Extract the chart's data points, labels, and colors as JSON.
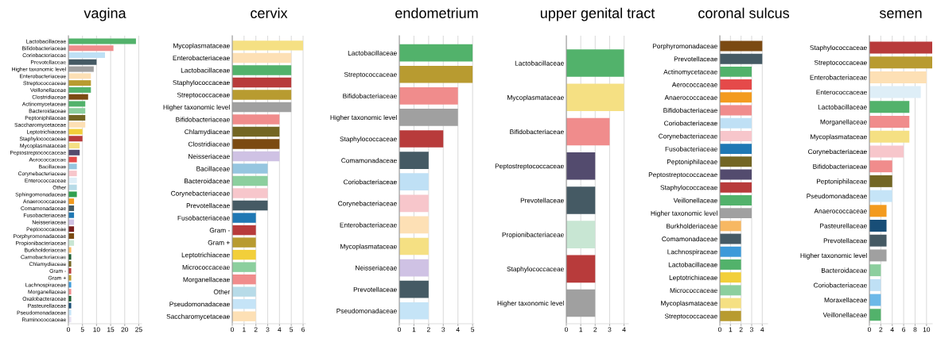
{
  "chart_data": [
    {
      "type": "bar",
      "orientation": "horizontal",
      "title": "vagina",
      "grid": "x",
      "xlim": [
        0,
        26
      ],
      "xticks": [
        0,
        5,
        10,
        15,
        20,
        25
      ],
      "categories": [
        "Lactobacillaceae",
        "Bifidobacteriaceae",
        "Coriobacteriaceae",
        "Prevotellaceae",
        "Higher taxonomic level",
        "Enterobacteriaceae",
        "Streptococcaceae",
        "Veillonellaceae",
        "Clostridiaceae",
        "Actinomycetaceae",
        "Bacteroidaceae",
        "Peptoniphilaceae",
        "Saccharomycetaceae",
        "Leptotrichiaceae",
        "Staphylococcaceae",
        "Mycoplasmataceae",
        "Peptostreptococcaceae",
        "Aerococcaceae",
        "Bacillaceae",
        "Corynebacteriaceae",
        "Enterococcaceae",
        "Other",
        "Sphingomonadaceae",
        "Anaerococcaceae",
        "Comamonadaceae",
        "Fusobacteriaceae",
        "Neisseriaceae",
        "Peptococcaceae",
        "Porphyromonadaceae",
        "Propionibacteriaceae",
        "Burkholderiaceae",
        "Carnobacteriaceae",
        "Chlamydiaceae",
        "Gram -",
        "Gram +",
        "Lachnospiraceae",
        "Morganellaceae",
        "Oxalobacteraceae",
        "Pasteurellaceae",
        "Pseudomonadaceae",
        "Ruminococcaceae"
      ],
      "values": [
        24,
        16,
        13,
        10,
        9,
        8,
        8,
        8,
        7,
        6,
        6,
        6,
        6,
        5,
        5,
        4,
        4,
        3,
        3,
        3,
        3,
        3,
        3,
        2,
        2,
        2,
        2,
        2,
        2,
        2,
        1,
        1,
        1,
        1,
        1,
        1,
        1,
        1,
        1,
        1,
        1
      ],
      "colors": [
        "#52b26b",
        "#f08c8c",
        "#bfe0f5",
        "#455a64",
        "#a0a0a0",
        "#fde0b5",
        "#b89b30",
        "#52b26b",
        "#7b4a12",
        "#52b26b",
        "#8ccf9e",
        "#736624",
        "#fde0b5",
        "#f2cf3a",
        "#b83b3b",
        "#f5e083",
        "#534b6e",
        "#e54a4a",
        "#96c6e0",
        "#f7c6cb",
        "#deeef7",
        "#b7dbe8",
        "#30a050",
        "#f39b1f",
        "#455a64",
        "#1f78b4",
        "#cfc2e4",
        "#7a1f1f",
        "#7b4a12",
        "#c8e6d3",
        "#f7b862",
        "#1e5e32",
        "#736624",
        "#b83b3b",
        "#b89b30",
        "#3d9ad9",
        "#f08c8c",
        "#1e5e32",
        "#184e77",
        "#c5e4f7",
        "#e6e0f0"
      ]
    },
    {
      "type": "bar",
      "orientation": "horizontal",
      "title": "cervix",
      "grid": "x",
      "xlim": [
        0,
        6.2
      ],
      "xticks": [
        0,
        1,
        2,
        3,
        4,
        5,
        6
      ],
      "categories": [
        "Mycoplasmataceae",
        "Enterobacteriaceae",
        "Lactobacillaceae",
        "Staphylococcaceae",
        "Streptococcaceae",
        "Higher taxonomic level",
        "Bifidobacteriaceae",
        "Chlamydiaceae",
        "Clostridiaceae",
        "Neisseriaceae",
        "Bacillaceae",
        "Bacteroidaceae",
        "Corynebacteriaceae",
        "Prevotellaceae",
        "Fusobacteriaceae",
        "Gram -",
        "Gram +",
        "Leptotrichiaceae",
        "Micrococcaceae",
        "Morganellaceae",
        "Other",
        "Pseudomonadaceae",
        "Saccharomycetaceae"
      ],
      "values": [
        6,
        5,
        5,
        5,
        5,
        5,
        4,
        4,
        4,
        4,
        3,
        3,
        3,
        3,
        2,
        2,
        2,
        2,
        2,
        2,
        2,
        2,
        2
      ],
      "colors": [
        "#f5e083",
        "#fde0b5",
        "#52b26b",
        "#b83b3b",
        "#b89b30",
        "#a0a0a0",
        "#f08c8c",
        "#736624",
        "#7b4a12",
        "#cfc2e4",
        "#96c6e0",
        "#8ccf9e",
        "#f7c6cb",
        "#455a64",
        "#1f78b4",
        "#b83b3b",
        "#b89b30",
        "#f2cf3a",
        "#8ccf9e",
        "#f08c8c",
        "#b7dbe8",
        "#c5e4f7",
        "#fde0b5"
      ]
    },
    {
      "type": "bar",
      "orientation": "horizontal",
      "title": "endometrium",
      "grid": "x",
      "xlim": [
        0,
        5.1
      ],
      "xticks": [
        0,
        1,
        2,
        3,
        4,
        5
      ],
      "categories": [
        "Lactobacillaceae",
        "Streptococcaceae",
        "Bifidobacteriaceae",
        "Higher taxonomic level",
        "Staphylococcaceae",
        "Comamonadaceae",
        "Coriobacteriaceae",
        "Corynebacteriaceae",
        "Enterobacteriaceae",
        "Mycoplasmataceae",
        "Neisseriaceae",
        "Prevotellaceae",
        "Pseudomonadaceae"
      ],
      "values": [
        5,
        5,
        4,
        4,
        3,
        2,
        2,
        2,
        2,
        2,
        2,
        2,
        2
      ],
      "colors": [
        "#52b26b",
        "#b89b30",
        "#f08c8c",
        "#a0a0a0",
        "#b83b3b",
        "#455a64",
        "#bfe0f5",
        "#f7c6cb",
        "#fde0b5",
        "#f5e083",
        "#cfc2e4",
        "#455a64",
        "#c5e4f7"
      ]
    },
    {
      "type": "bar",
      "orientation": "horizontal",
      "title": "upper genital tract",
      "grid": "x",
      "xlim": [
        0,
        4.3
      ],
      "xticks": [
        0,
        1,
        2,
        3,
        4
      ],
      "categories": [
        "Lactobacillaceae",
        "Mycoplasmataceae",
        "Bifidobacteriaceae",
        "Peptostreptococcaceae",
        "Prevotellaceae",
        "Propionibacteriaceae",
        "Staphylococcaceae",
        "Higher taxonomic level"
      ],
      "values": [
        4,
        4,
        3,
        2,
        2,
        2,
        2,
        2
      ],
      "colors": [
        "#52b26b",
        "#f5e083",
        "#f08c8c",
        "#534b6e",
        "#455a64",
        "#c8e6d3",
        "#b83b3b",
        "#a0a0a0"
      ]
    },
    {
      "type": "bar",
      "orientation": "horizontal",
      "title": "coronal sulcus",
      "grid": "x",
      "xlim": [
        0,
        4.5
      ],
      "xticks": [
        0,
        1,
        2,
        3,
        4
      ],
      "categories": [
        "Porphyromonadaceae",
        "Prevotellaceae",
        "Actinomycetaceae",
        "Aerococcaceae",
        "Anaerococcaceae",
        "Bifidobacteriaceae",
        "Coriobacteriaceae",
        "Corynebacteriaceae",
        "Fusobacteriaceae",
        "Peptoniphilaceae",
        "Peptostreptococcaceae",
        "Staphylococcaceae",
        "Veillonellaceae",
        "Higher taxonomic level",
        "Burkholderiaceae",
        "Comamonadaceae",
        "Lachnospiraceae",
        "Lactobacillaceae",
        "Leptotrichiaceae",
        "Micrococcaceae",
        "Mycoplasmataceae",
        "Streptococcaceae"
      ],
      "values": [
        4,
        4,
        3,
        3,
        3,
        3,
        3,
        3,
        3,
        3,
        3,
        3,
        3,
        3,
        2,
        2,
        2,
        2,
        2,
        2,
        2,
        2
      ],
      "colors": [
        "#7b4a12",
        "#455a64",
        "#52b26b",
        "#e54a4a",
        "#f39b1f",
        "#f08c8c",
        "#bfe0f5",
        "#f7c6cb",
        "#1f78b4",
        "#736624",
        "#534b6e",
        "#b83b3b",
        "#52b26b",
        "#a0a0a0",
        "#f7b862",
        "#455a64",
        "#3d9ad9",
        "#52b26b",
        "#f2cf3a",
        "#8ccf9e",
        "#f5e083",
        "#b89b30"
      ]
    },
    {
      "type": "bar",
      "orientation": "horizontal",
      "title": "semen",
      "grid": "x",
      "xlim": [
        0,
        11
      ],
      "xticks": [
        0,
        2,
        4,
        6,
        8,
        10
      ],
      "categories": [
        "Staphylococcaceae",
        "Streptococcaceae",
        "Enterobacteriaceae",
        "Enterococcaceae",
        "Lactobacillaceae",
        "Morganellaceae",
        "Mycoplasmataceae",
        "Corynebacteriaceae",
        "Bifidobacteriaceae",
        "Peptoniphilaceae",
        "Pseudomonadaceae",
        "Anaerococcaceae",
        "Pasteurellaceae",
        "Prevotellaceae",
        "Higher taxonomic level",
        "Bacteroidaceae",
        "Coriobacteriaceae",
        "Moraxellaceae",
        "Veillonellaceae"
      ],
      "values": [
        11,
        11,
        10,
        9,
        7,
        7,
        7,
        6,
        4,
        4,
        4,
        3,
        3,
        3,
        3,
        2,
        2,
        2,
        2
      ],
      "colors": [
        "#b83b3b",
        "#b89b30",
        "#fde0b5",
        "#deeef7",
        "#52b26b",
        "#f08c8c",
        "#f5e083",
        "#f7c6cb",
        "#f08c8c",
        "#736624",
        "#c5e4f7",
        "#f39b1f",
        "#184e77",
        "#455a64",
        "#a0a0a0",
        "#8ccf9e",
        "#bfe0f5",
        "#6cb8e8",
        "#52b26b"
      ]
    }
  ]
}
